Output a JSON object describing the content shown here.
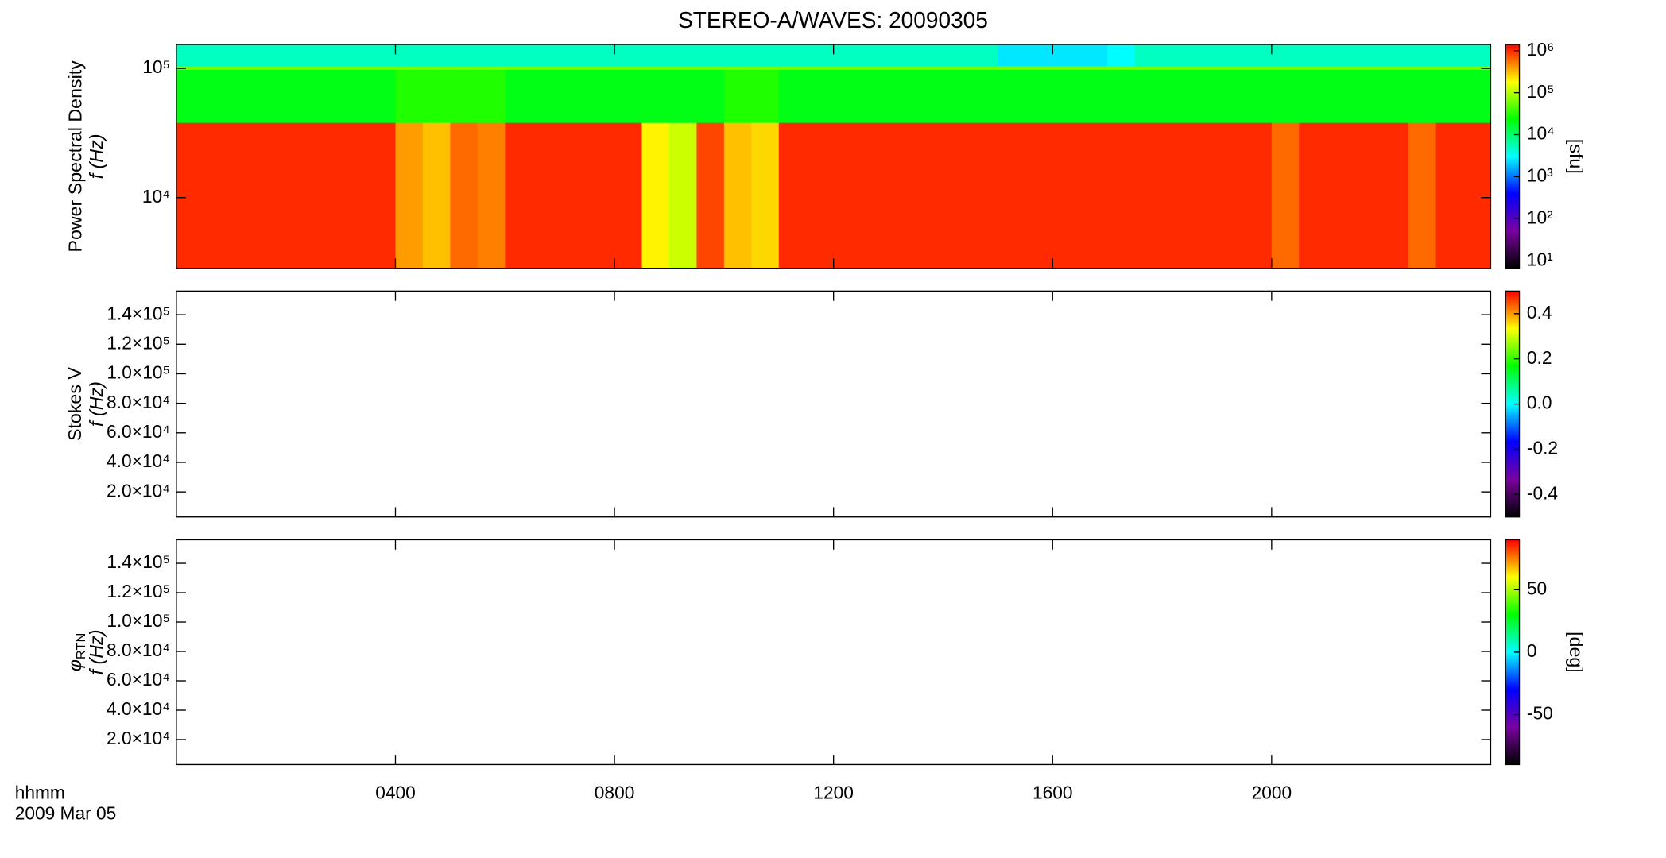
{
  "chart_data": [
    {
      "type": "heatmap",
      "title": "STEREO-A/WAVES: 20090305",
      "quantity": "Power Spectral Density",
      "ylabel": "f (Hz)",
      "xlim": [
        0,
        24
      ],
      "xticks": [
        4,
        8,
        12,
        16,
        20
      ],
      "ylim": [
        2840,
        153000
      ],
      "ylog": true,
      "yticks": [
        {
          "value": 10000,
          "label": "10⁴"
        },
        {
          "value": 100000,
          "label": "10⁵"
        }
      ],
      "x_bins": [
        0,
        0.5,
        1,
        1.5,
        2,
        2.5,
        3,
        3.5,
        4,
        4.5,
        5,
        5.5,
        6,
        6.5,
        7,
        7.5,
        8,
        8.5,
        9,
        9.5,
        10,
        10.5,
        11,
        11.5,
        12,
        12.5,
        13,
        13.5,
        14,
        14.5,
        15,
        15.5,
        16,
        16.5,
        17,
        17.5,
        18,
        18.5,
        19,
        19.5,
        20,
        20.5,
        21,
        21.5,
        22,
        22.5,
        23,
        23.5,
        24
      ],
      "y_bins": [
        2840,
        38000,
        98000,
        104000,
        153000
      ],
      "z": [
        [
          1000000,
          1000000,
          1000000,
          1000000,
          1000000,
          1000000,
          1000000,
          1000000,
          400000,
          300000,
          600000,
          500000,
          1000000,
          1000000,
          1000000,
          1000000,
          1000000,
          200000,
          120000,
          800000,
          300000,
          250000,
          1000000,
          1000000,
          1000000,
          1000000,
          1000000,
          1000000,
          1000000,
          1000000,
          1000000,
          1000000,
          1000000,
          1000000,
          1000000,
          1000000,
          1000000,
          1000000,
          1000000,
          1000000,
          600000,
          1000000,
          1000000,
          1000000,
          1000000,
          600000,
          1000000,
          1000000
        ],
        [
          20000,
          20000,
          20000,
          20000,
          20000,
          20000,
          20000,
          20000,
          30000,
          30000,
          30000,
          30000,
          20000,
          20000,
          20000,
          20000,
          20000,
          20000,
          20000,
          20000,
          30000,
          30000,
          20000,
          20000,
          20000,
          20000,
          20000,
          20000,
          20000,
          20000,
          20000,
          20000,
          20000,
          20000,
          20000,
          20000,
          20000,
          20000,
          20000,
          20000,
          20000,
          20000,
          20000,
          20000,
          20000,
          20000,
          20000,
          20000
        ],
        [
          60000,
          60000,
          60000,
          60000,
          60000,
          60000,
          60000,
          60000,
          60000,
          60000,
          60000,
          60000,
          60000,
          60000,
          60000,
          60000,
          60000,
          60000,
          60000,
          60000,
          60000,
          60000,
          60000,
          60000,
          60000,
          60000,
          60000,
          60000,
          60000,
          60000,
          60000,
          60000,
          60000,
          60000,
          60000,
          60000,
          60000,
          60000,
          60000,
          60000,
          60000,
          60000,
          60000,
          60000,
          60000,
          60000,
          60000,
          60000
        ],
        [
          5000,
          5000,
          5000,
          5000,
          5000,
          5000,
          5000,
          5000,
          5000,
          5000,
          5000,
          5000,
          5000,
          5000,
          5000,
          5000,
          5000,
          5000,
          5000,
          5000,
          5000,
          5000,
          5000,
          5000,
          5000,
          5000,
          5000,
          5000,
          5000,
          5000,
          2500,
          2500,
          2500,
          2500,
          3000,
          5000,
          5000,
          5000,
          5000,
          5000,
          5000,
          5000,
          5000,
          5000,
          5000,
          5000,
          5000,
          5000
        ]
      ],
      "zlim": [
        6.6,
        1400000
      ],
      "zlog": true,
      "zticks": [
        {
          "value": 10,
          "label": "10¹"
        },
        {
          "value": 100,
          "label": "10²"
        },
        {
          "value": 1000,
          "label": "10³"
        },
        {
          "value": 10000,
          "label": "10⁴"
        },
        {
          "value": 100000,
          "label": "10⁵"
        },
        {
          "value": 1000000,
          "label": "10⁶"
        }
      ],
      "zlabel": "[sfu]",
      "colormap": [
        "#000000",
        "#7a00a0",
        "#0000ff",
        "#00ffff",
        "#00ff00",
        "#ffff00",
        "#ff0000"
      ]
    },
    {
      "type": "heatmap",
      "quantity": "Stokes V",
      "ylabel": "f (Hz)",
      "xlim": [
        0,
        24
      ],
      "xticks": [
        4,
        8,
        12,
        16,
        20
      ],
      "ylim": [
        3000,
        156000
      ],
      "yticks": [
        {
          "value": 20000,
          "label": "2.0×10⁴"
        },
        {
          "value": 40000,
          "label": "4.0×10⁴"
        },
        {
          "value": 60000,
          "label": "6.0×10⁴"
        },
        {
          "value": 80000,
          "label": "8.0×10⁴"
        },
        {
          "value": 100000,
          "label": "1.0×10⁵"
        },
        {
          "value": 120000,
          "label": "1.2×10⁵"
        },
        {
          "value": 140000,
          "label": "1.4×10⁵"
        }
      ],
      "zlim": [
        -0.5,
        0.5
      ],
      "zticks": [
        -0.4,
        -0.2,
        {
          "value": 0,
          "label": "0.0"
        },
        0.2,
        0.4
      ],
      "colormap": [
        "#000000",
        "#7a00a0",
        "#0000ff",
        "#00ffff",
        "#00ff00",
        "#ffff00",
        "#ff0000"
      ]
    },
    {
      "type": "heatmap",
      "quantity": {
        "symbol": "φ",
        "subscript": "RTN"
      },
      "ylabel": "f (Hz)",
      "xlim": [
        0,
        24
      ],
      "xticks": [
        {
          "value": 4,
          "label": "0400"
        },
        {
          "value": 8,
          "label": "0800"
        },
        {
          "value": 12,
          "label": "1200"
        },
        {
          "value": 16,
          "label": "1600"
        },
        {
          "value": 20,
          "label": "2000"
        }
      ],
      "xlabel": "hhmm",
      "date": "2009 Mar 05",
      "ylim": [
        3000,
        156000
      ],
      "yticks": [
        {
          "value": 20000,
          "label": "2.0×10⁴"
        },
        {
          "value": 40000,
          "label": "4.0×10⁴"
        },
        {
          "value": 60000,
          "label": "6.0×10⁴"
        },
        {
          "value": 80000,
          "label": "8.0×10⁴"
        },
        {
          "value": 100000,
          "label": "1.0×10⁵"
        },
        {
          "value": 120000,
          "label": "1.2×10⁵"
        },
        {
          "value": 140000,
          "label": "1.4×10⁵"
        }
      ],
      "zlim": [
        -90,
        90
      ],
      "zticks": [
        -50,
        0,
        50
      ],
      "zlabel": "[deg]",
      "colormap": [
        "#000000",
        "#7a00a0",
        "#0000ff",
        "#00ffff",
        "#00ff00",
        "#ffff00",
        "#ff0000"
      ]
    }
  ]
}
